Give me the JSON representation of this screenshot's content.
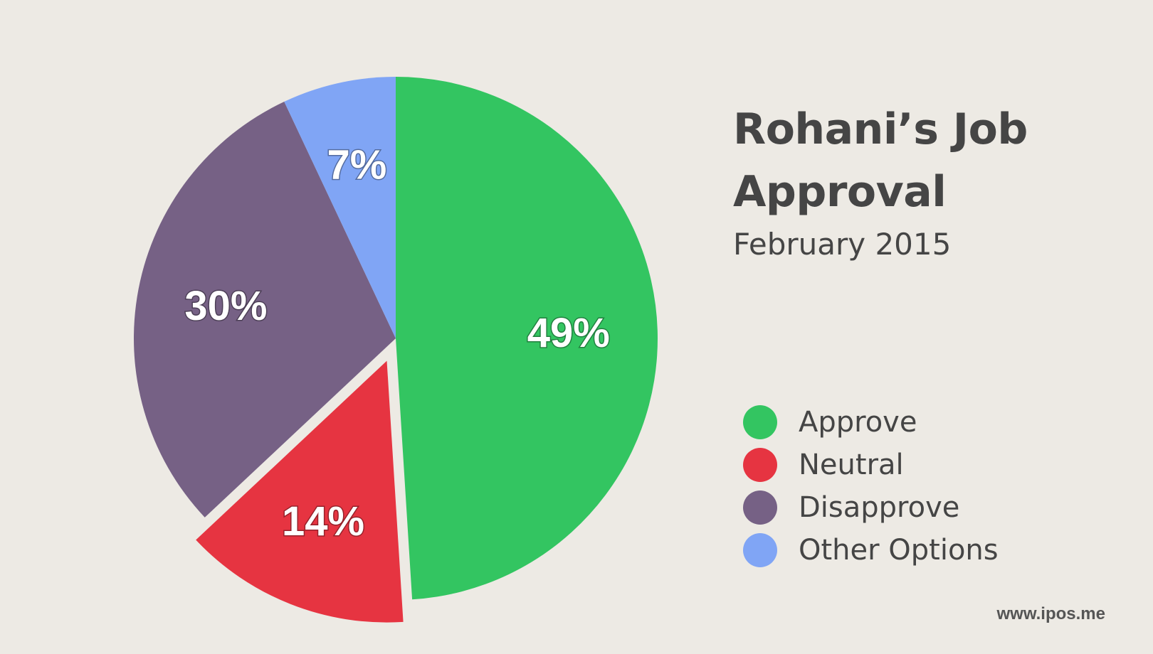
{
  "chart_data": {
    "type": "pie",
    "title": "Rohani’s Job Approval",
    "subtitle": "February 2015",
    "slices": [
      {
        "name": "Approve",
        "value": 49,
        "label": "49%",
        "color": "#33c561",
        "exploded": false
      },
      {
        "name": "Neutral",
        "value": 14,
        "label": "14%",
        "color": "#e63441",
        "exploded": true
      },
      {
        "name": "Disapprove",
        "value": 30,
        "label": "30%",
        "color": "#766185",
        "exploded": false
      },
      {
        "name": "Other Options",
        "value": 7,
        "label": "7%",
        "color": "#80a5f5",
        "exploded": false
      }
    ],
    "legend_position": "right"
  },
  "legend": [
    {
      "label": "Approve",
      "color": "#33c561"
    },
    {
      "label": "Neutral",
      "color": "#e63441"
    },
    {
      "label": "Disapprove",
      "color": "#766185"
    },
    {
      "label": "Other Options",
      "color": "#80a5f5"
    }
  ],
  "source": "www.ipos.me"
}
